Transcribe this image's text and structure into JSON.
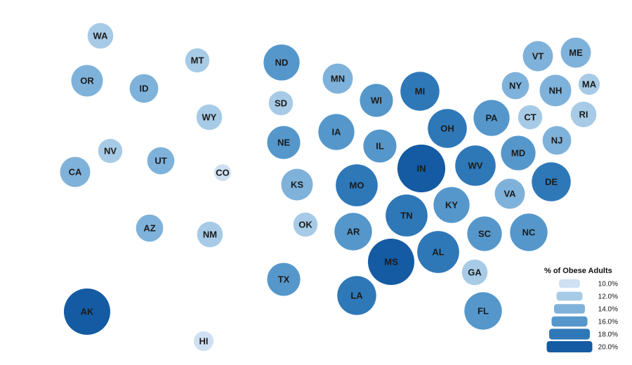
{
  "legend": {
    "title": "% of Obese Adults",
    "items": [
      {
        "label": "10.0%",
        "value": 10.0
      },
      {
        "label": "12.0%",
        "value": 12.0
      },
      {
        "label": "14.0%",
        "value": 14.0
      },
      {
        "label": "16.0%",
        "value": 16.0
      },
      {
        "label": "18.0%",
        "value": 18.0
      },
      {
        "label": "20.0%",
        "value": 20.0
      }
    ]
  },
  "colors": {
    "10": "#cfe0f2",
    "12": "#a7cbe6",
    "14": "#7fb2da",
    "16": "#5597cb",
    "18": "#2f78b8",
    "20": "#145ba3"
  },
  "states": [
    {
      "abbr": "WA",
      "value": 13.0
    },
    {
      "abbr": "OR",
      "value": 15.0
    },
    {
      "abbr": "ID",
      "value": 14.0
    },
    {
      "abbr": "MT",
      "value": 12.5
    },
    {
      "abbr": "WY",
      "value": 13.0
    },
    {
      "abbr": "NV",
      "value": 12.5
    },
    {
      "abbr": "UT",
      "value": 13.5
    },
    {
      "abbr": "CA",
      "value": 14.5
    },
    {
      "abbr": "CO",
      "value": 10.0
    },
    {
      "abbr": "AZ",
      "value": 13.5
    },
    {
      "abbr": "NM",
      "value": 13.0
    },
    {
      "abbr": "AK",
      "value": 20.0
    },
    {
      "abbr": "HI",
      "value": 11.0
    },
    {
      "abbr": "ND",
      "value": 16.5
    },
    {
      "abbr": "SD",
      "value": 12.5
    },
    {
      "abbr": "NE",
      "value": 15.5
    },
    {
      "abbr": "KS",
      "value": 15.0
    },
    {
      "abbr": "OK",
      "value": 12.5
    },
    {
      "abbr": "TX",
      "value": 15.5
    },
    {
      "abbr": "MN",
      "value": 14.5
    },
    {
      "abbr": "IA",
      "value": 16.5
    },
    {
      "abbr": "MO",
      "value": 18.5
    },
    {
      "abbr": "AR",
      "value": 17.0
    },
    {
      "abbr": "LA",
      "value": 17.5
    },
    {
      "abbr": "WI",
      "value": 15.5
    },
    {
      "abbr": "IL",
      "value": 15.5
    },
    {
      "abbr": "MS",
      "value": 20.0
    },
    {
      "abbr": "MI",
      "value": 17.5
    },
    {
      "abbr": "IN",
      "value": 20.5
    },
    {
      "abbr": "TN",
      "value": 18.5
    },
    {
      "abbr": "AL",
      "value": 18.5
    },
    {
      "abbr": "KY",
      "value": 16.5
    },
    {
      "abbr": "OH",
      "value": 17.5
    },
    {
      "abbr": "WV",
      "value": 18.0
    },
    {
      "abbr": "PA",
      "value": 16.5
    },
    {
      "abbr": "MD",
      "value": 16.0
    },
    {
      "abbr": "VA",
      "value": 14.5
    },
    {
      "abbr": "SC",
      "value": 16.0
    },
    {
      "abbr": "NC",
      "value": 17.0
    },
    {
      "abbr": "GA",
      "value": 13.0
    },
    {
      "abbr": "FL",
      "value": 17.0
    },
    {
      "abbr": "DE",
      "value": 17.5
    },
    {
      "abbr": "NJ",
      "value": 14.0
    },
    {
      "abbr": "NY",
      "value": 13.5
    },
    {
      "abbr": "CT",
      "value": 12.5
    },
    {
      "abbr": "RI",
      "value": 13.0
    },
    {
      "abbr": "MA",
      "value": 11.5
    },
    {
      "abbr": "NH",
      "value": 15.0
    },
    {
      "abbr": "VT",
      "value": 14.5
    },
    {
      "abbr": "ME",
      "value": 14.5
    }
  ]
}
